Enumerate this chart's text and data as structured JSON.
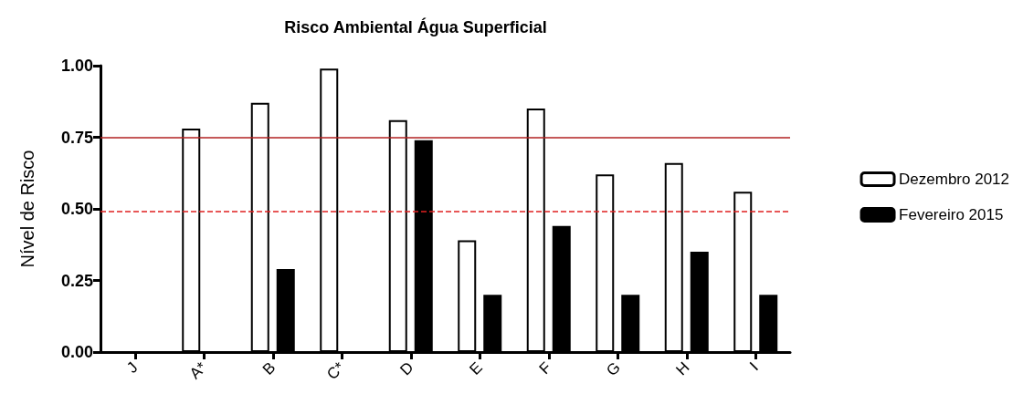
{
  "chart_data": {
    "type": "bar",
    "title": "Risco Ambiental Água Superficial",
    "ylabel": "Nível de Risco",
    "categories": [
      "J",
      "A*",
      "B",
      "C*",
      "D",
      "E",
      "F",
      "G",
      "H",
      "I"
    ],
    "series": [
      {
        "name": "Dezembro 2012",
        "color": "#ffffff",
        "values": [
          null,
          0.78,
          0.87,
          0.99,
          0.81,
          0.39,
          0.85,
          0.62,
          0.66,
          0.56
        ]
      },
      {
        "name": "Fevereiro 2015",
        "color": "#000000",
        "values": [
          null,
          null,
          0.29,
          null,
          0.74,
          0.2,
          0.44,
          0.2,
          0.35,
          0.2
        ]
      }
    ],
    "ylim": [
      0,
      1
    ],
    "yticks": [
      {
        "value": 0,
        "label": "0.00"
      },
      {
        "value": 0.25,
        "label": "0.25"
      },
      {
        "value": 0.5,
        "label": "0.50"
      },
      {
        "value": 0.75,
        "label": "0.75"
      },
      {
        "value": 1,
        "label": "1.00"
      }
    ],
    "ref_lines": [
      {
        "axis": "y",
        "value": 0.75,
        "color": "#b22222",
        "line_style": "solid"
      },
      {
        "axis": "y",
        "value": 0.49,
        "color": "#e02020",
        "line_style": "dashed"
      }
    ],
    "grid": false,
    "legend": "right"
  }
}
